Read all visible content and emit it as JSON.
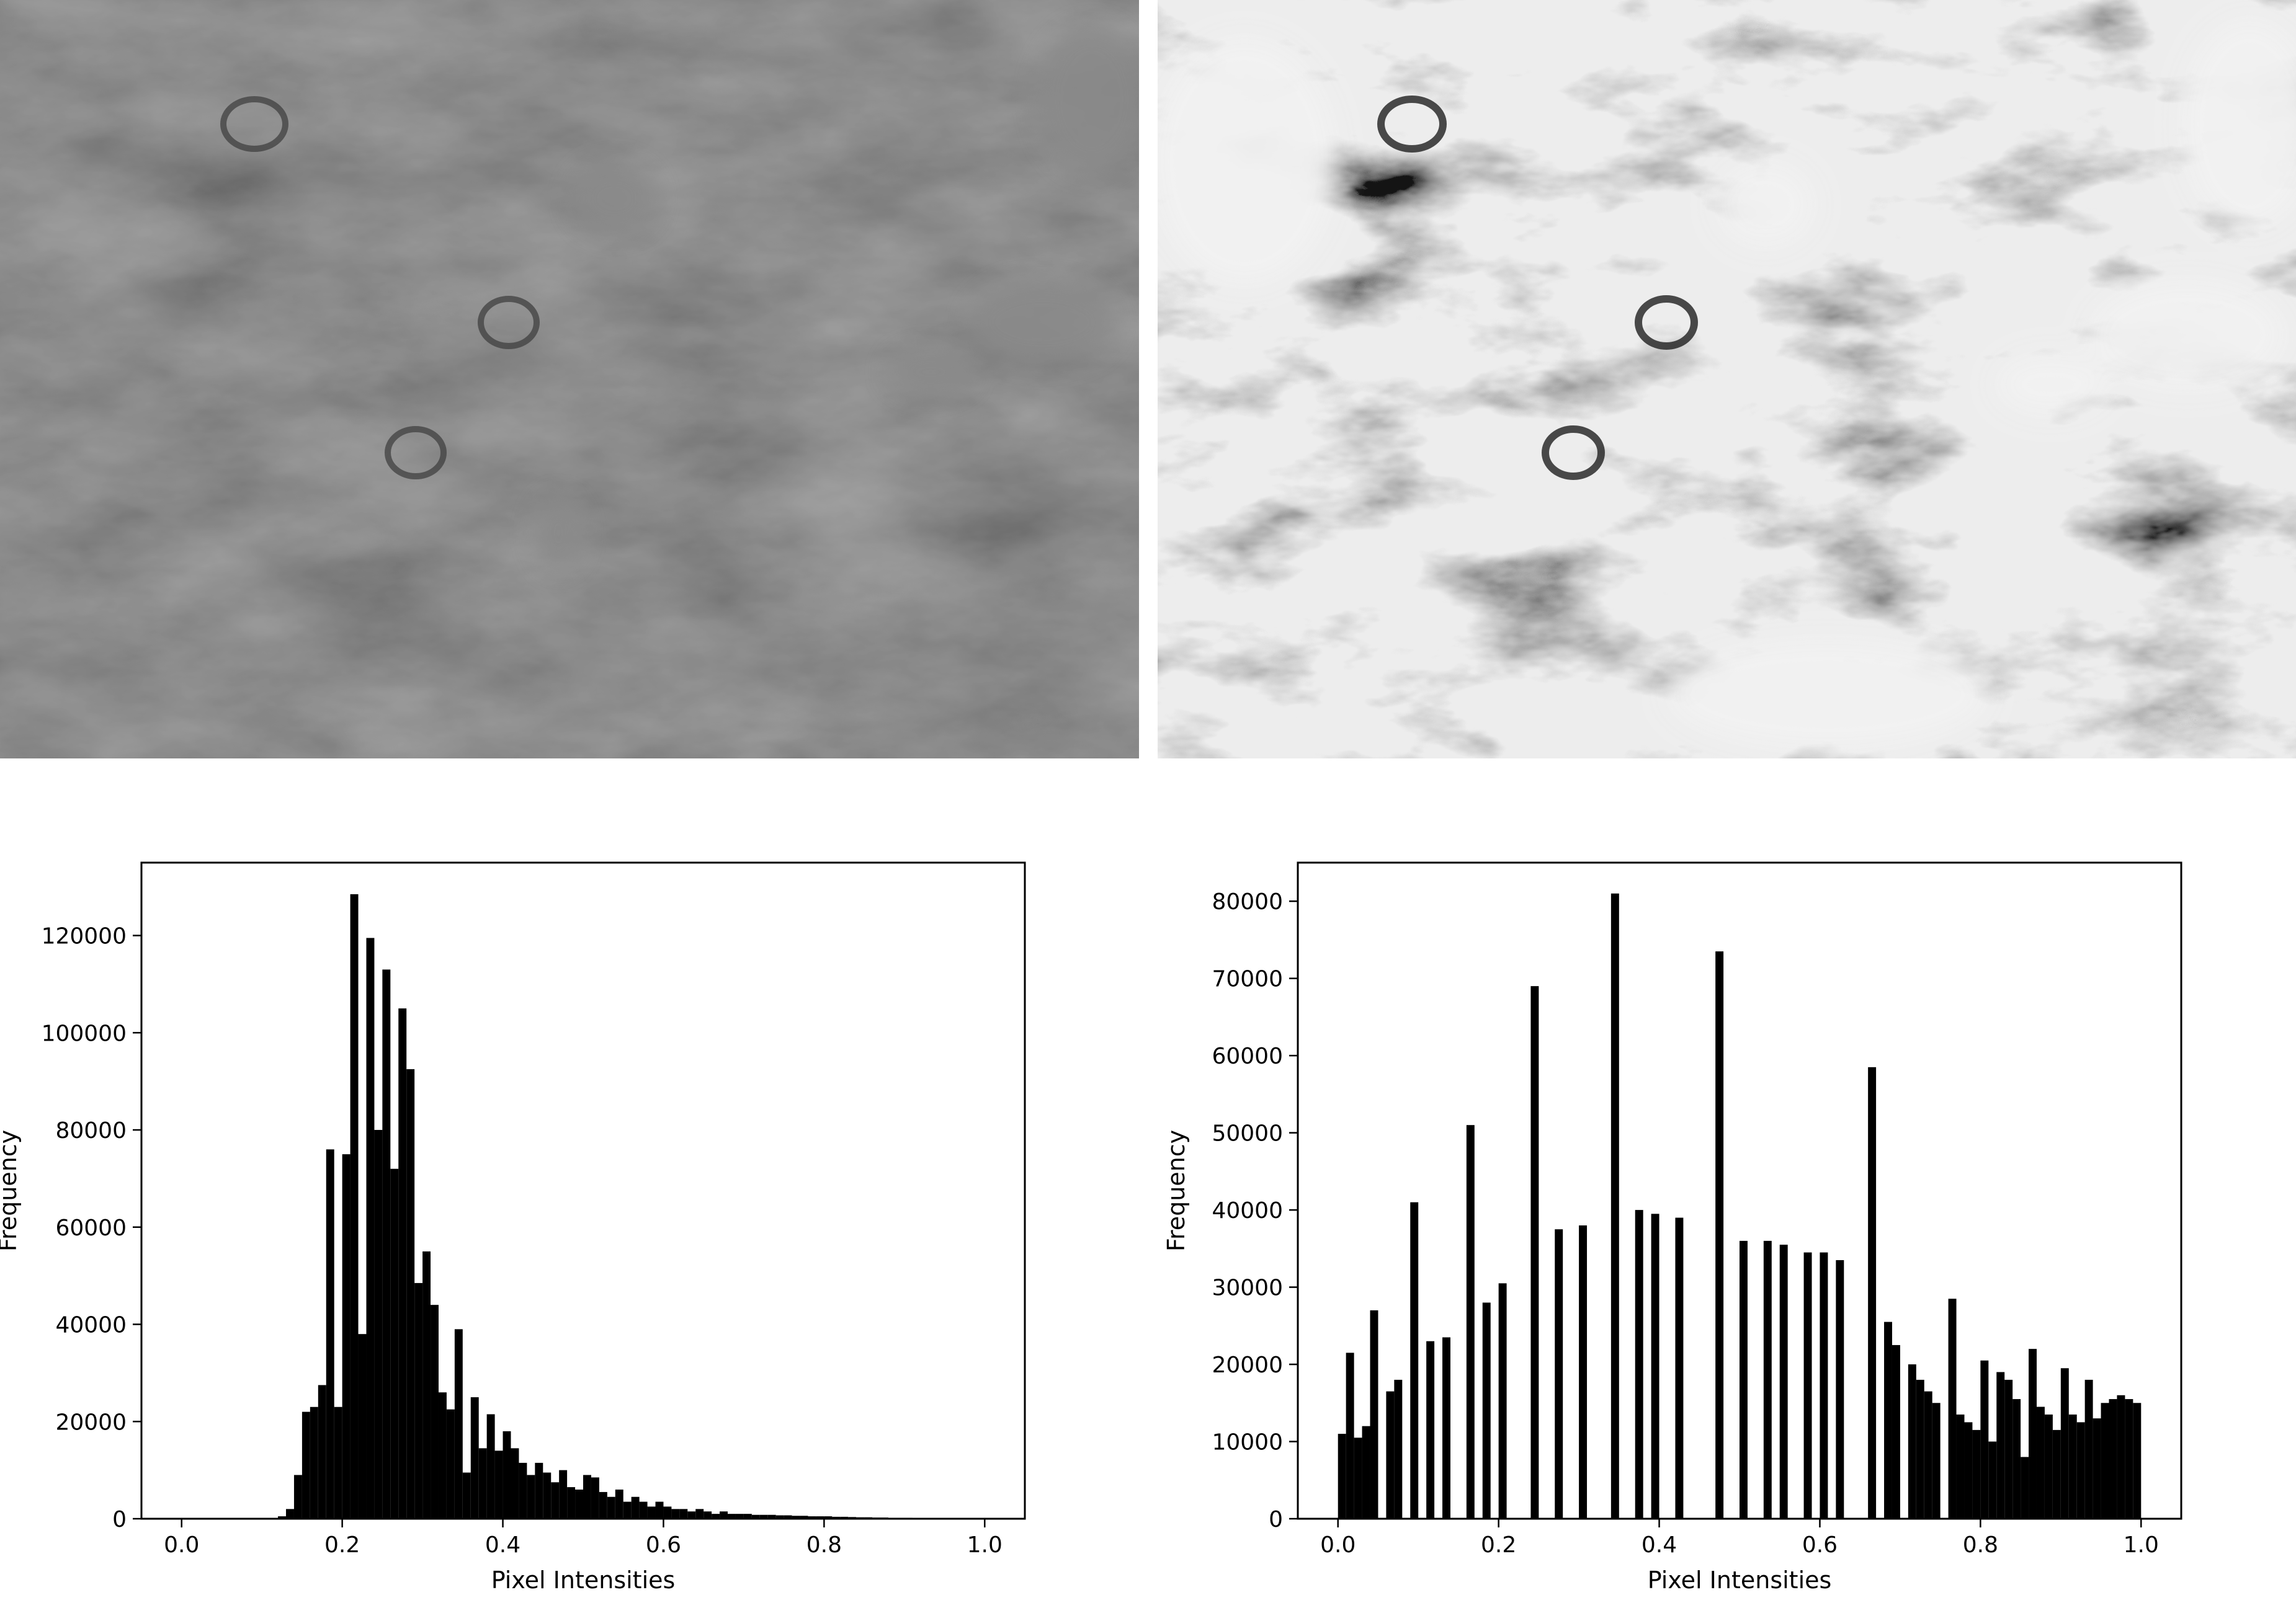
{
  "images": [
    {
      "name": "original-grayscale-image",
      "tone": "low-contrast"
    },
    {
      "name": "equalized-grayscale-image",
      "tone": "high-contrast"
    }
  ],
  "chart_data": [
    {
      "type": "bar",
      "xlabel": "Pixel Intensities",
      "ylabel": "Frequency",
      "xlim": [
        -0.05,
        1.05
      ],
      "ylim": [
        0,
        135000
      ],
      "xticks": [
        0.0,
        0.2,
        0.4,
        0.6,
        0.8,
        1.0
      ],
      "xtick_labels": [
        "0.0",
        "0.2",
        "0.4",
        "0.6",
        "0.8",
        "1.0"
      ],
      "yticks": [
        0,
        20000,
        40000,
        60000,
        80000,
        100000,
        120000
      ],
      "ytick_labels": [
        "0",
        "20000",
        "40000",
        "60000",
        "80000",
        "100000",
        "120000"
      ],
      "bin_width": 0.01,
      "color": "#000000",
      "bins": [
        [
          0.12,
          500
        ],
        [
          0.13,
          2000
        ],
        [
          0.14,
          9000
        ],
        [
          0.15,
          22000
        ],
        [
          0.16,
          23000
        ],
        [
          0.17,
          27500
        ],
        [
          0.18,
          76000
        ],
        [
          0.19,
          23000
        ],
        [
          0.2,
          75000
        ],
        [
          0.21,
          128500
        ],
        [
          0.22,
          38000
        ],
        [
          0.23,
          119500
        ],
        [
          0.24,
          80000
        ],
        [
          0.25,
          113000
        ],
        [
          0.26,
          72000
        ],
        [
          0.27,
          105000
        ],
        [
          0.28,
          92500
        ],
        [
          0.29,
          48500
        ],
        [
          0.3,
          55000
        ],
        [
          0.31,
          44000
        ],
        [
          0.32,
          26000
        ],
        [
          0.33,
          22500
        ],
        [
          0.34,
          39000
        ],
        [
          0.35,
          9500
        ],
        [
          0.36,
          25000
        ],
        [
          0.37,
          14500
        ],
        [
          0.38,
          21500
        ],
        [
          0.39,
          14000
        ],
        [
          0.4,
          18000
        ],
        [
          0.41,
          14500
        ],
        [
          0.42,
          11500
        ],
        [
          0.43,
          9000
        ],
        [
          0.44,
          11500
        ],
        [
          0.45,
          9500
        ],
        [
          0.46,
          7500
        ],
        [
          0.47,
          10000
        ],
        [
          0.48,
          6500
        ],
        [
          0.49,
          6000
        ],
        [
          0.5,
          9000
        ],
        [
          0.51,
          8500
        ],
        [
          0.52,
          5500
        ],
        [
          0.53,
          4500
        ],
        [
          0.54,
          6000
        ],
        [
          0.55,
          3500
        ],
        [
          0.56,
          4500
        ],
        [
          0.57,
          3500
        ],
        [
          0.58,
          2500
        ],
        [
          0.59,
          3500
        ],
        [
          0.6,
          2500
        ],
        [
          0.61,
          2000
        ],
        [
          0.62,
          2000
        ],
        [
          0.63,
          1500
        ],
        [
          0.64,
          2000
        ],
        [
          0.65,
          1500
        ],
        [
          0.66,
          1000
        ],
        [
          0.67,
          1500
        ],
        [
          0.68,
          1000
        ],
        [
          0.69,
          1000
        ],
        [
          0.7,
          1000
        ],
        [
          0.71,
          800
        ],
        [
          0.72,
          800
        ],
        [
          0.73,
          800
        ],
        [
          0.74,
          700
        ],
        [
          0.75,
          700
        ],
        [
          0.76,
          600
        ],
        [
          0.77,
          600
        ],
        [
          0.78,
          500
        ],
        [
          0.79,
          500
        ],
        [
          0.8,
          500
        ],
        [
          0.81,
          400
        ],
        [
          0.82,
          400
        ],
        [
          0.83,
          350
        ],
        [
          0.84,
          300
        ],
        [
          0.85,
          300
        ],
        [
          0.86,
          250
        ],
        [
          0.87,
          250
        ],
        [
          0.88,
          200
        ],
        [
          0.89,
          200
        ],
        [
          0.9,
          200
        ],
        [
          0.91,
          150
        ],
        [
          0.92,
          150
        ],
        [
          0.93,
          150
        ],
        [
          0.94,
          100
        ],
        [
          0.95,
          100
        ],
        [
          0.96,
          100
        ]
      ]
    },
    {
      "type": "bar",
      "xlabel": "Pixel Intensities",
      "ylabel": "Frequency",
      "xlim": [
        -0.05,
        1.05
      ],
      "ylim": [
        0,
        85000
      ],
      "xticks": [
        0.0,
        0.2,
        0.4,
        0.6,
        0.8,
        1.0
      ],
      "xtick_labels": [
        "0.0",
        "0.2",
        "0.4",
        "0.6",
        "0.8",
        "1.0"
      ],
      "yticks": [
        0,
        10000,
        20000,
        30000,
        40000,
        50000,
        60000,
        70000,
        80000
      ],
      "ytick_labels": [
        "0",
        "10000",
        "20000",
        "30000",
        "40000",
        "50000",
        "60000",
        "70000",
        "80000"
      ],
      "bin_width": 0.01,
      "color": "#000000",
      "bins": [
        [
          0.0,
          11000
        ],
        [
          0.01,
          21500
        ],
        [
          0.02,
          10500
        ],
        [
          0.03,
          12000
        ],
        [
          0.04,
          27000
        ],
        [
          0.06,
          16500
        ],
        [
          0.07,
          18000
        ],
        [
          0.09,
          41000
        ],
        [
          0.11,
          23000
        ],
        [
          0.13,
          23500
        ],
        [
          0.16,
          51000
        ],
        [
          0.18,
          28000
        ],
        [
          0.2,
          30500
        ],
        [
          0.24,
          69000
        ],
        [
          0.27,
          37500
        ],
        [
          0.3,
          38000
        ],
        [
          0.34,
          81000
        ],
        [
          0.37,
          40000
        ],
        [
          0.39,
          39500
        ],
        [
          0.42,
          39000
        ],
        [
          0.47,
          73500
        ],
        [
          0.5,
          36000
        ],
        [
          0.53,
          36000
        ],
        [
          0.55,
          35500
        ],
        [
          0.58,
          34500
        ],
        [
          0.6,
          34500
        ],
        [
          0.62,
          33500
        ],
        [
          0.66,
          58500
        ],
        [
          0.68,
          25500
        ],
        [
          0.69,
          22500
        ],
        [
          0.71,
          20000
        ],
        [
          0.72,
          18000
        ],
        [
          0.73,
          16500
        ],
        [
          0.74,
          15000
        ],
        [
          0.76,
          28500
        ],
        [
          0.77,
          13500
        ],
        [
          0.78,
          12500
        ],
        [
          0.79,
          11500
        ],
        [
          0.8,
          20500
        ],
        [
          0.81,
          10000
        ],
        [
          0.82,
          19000
        ],
        [
          0.83,
          18000
        ],
        [
          0.84,
          15500
        ],
        [
          0.85,
          8000
        ],
        [
          0.86,
          22000
        ],
        [
          0.87,
          14500
        ],
        [
          0.88,
          13500
        ],
        [
          0.89,
          11500
        ],
        [
          0.9,
          19500
        ],
        [
          0.91,
          13500
        ],
        [
          0.92,
          12500
        ],
        [
          0.93,
          18000
        ],
        [
          0.94,
          13000
        ],
        [
          0.95,
          15000
        ],
        [
          0.96,
          15500
        ],
        [
          0.97,
          16000
        ],
        [
          0.98,
          15500
        ],
        [
          0.99,
          15000
        ]
      ]
    }
  ]
}
